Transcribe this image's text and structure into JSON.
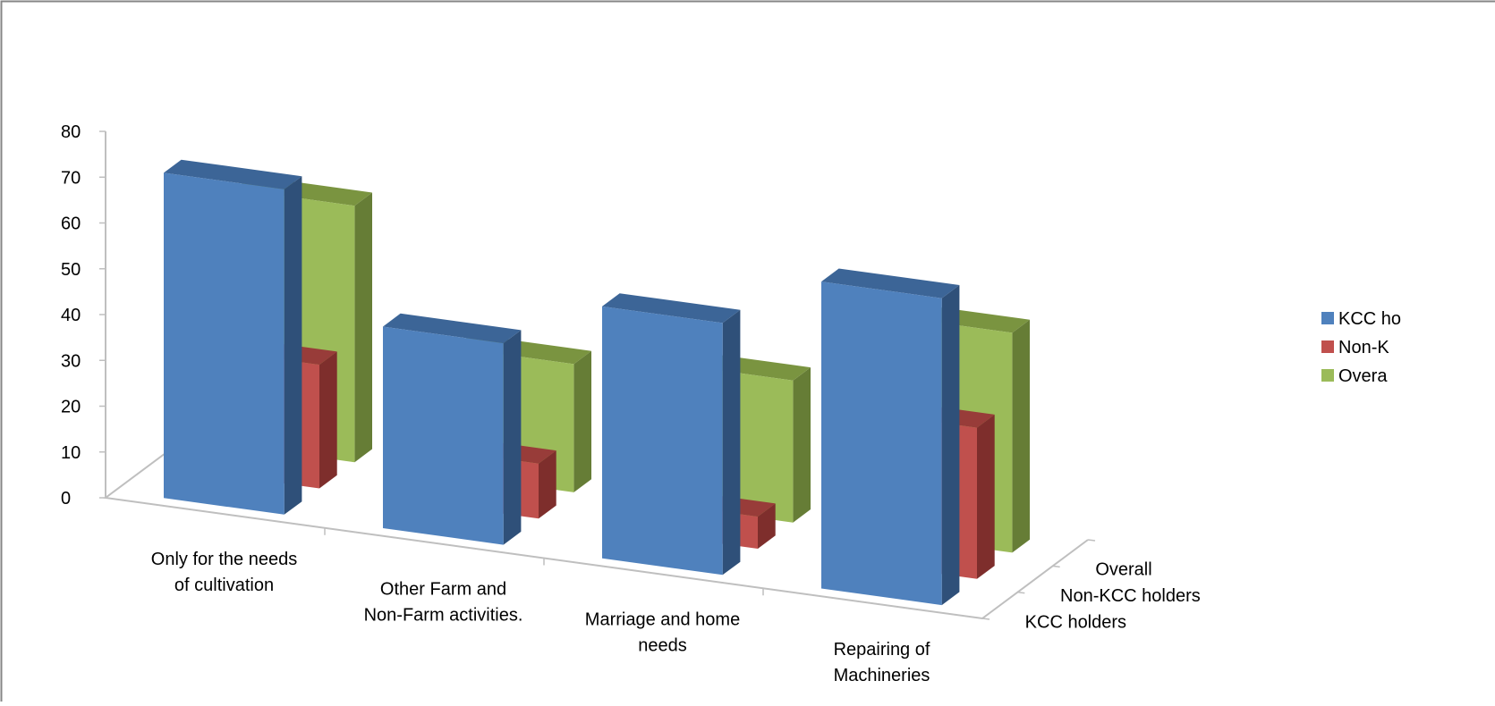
{
  "chart_data": {
    "type": "bar",
    "subtype": "3d-clustered-column",
    "categories": [
      "Only for the needs of cultivation",
      "Other Farm and Non-Farm activities.",
      "Marriage and home needs",
      "Repairing of Machineries"
    ],
    "category_lines": [
      [
        "Only for the needs",
        "of cultivation"
      ],
      [
        "Other Farm and",
        "Non-Farm activities."
      ],
      [
        "Marriage and home",
        "needs"
      ],
      [
        "Repairing of",
        "Machineries"
      ]
    ],
    "series": [
      {
        "name": "KCC holders",
        "values": [
          71,
          44,
          55,
          67
        ]
      },
      {
        "name": "Non-KCC holders",
        "values": [
          27,
          12,
          7,
          33
        ]
      },
      {
        "name": "Overall",
        "values": [
          56,
          28,
          31,
          48
        ]
      }
    ],
    "depth_labels": [
      "KCC holders",
      "Non-KCC holders",
      "Overall"
    ],
    "legend_labels": [
      "KCC ho",
      "Non-K",
      "Overa"
    ],
    "ylim": [
      0,
      80
    ],
    "yticks": [
      0,
      10,
      20,
      30,
      40,
      50,
      60,
      70,
      80
    ],
    "grid": false,
    "legend_position": "right",
    "colors": {
      "KCC holders": {
        "front": "#4F81BD",
        "side": "#2F5079",
        "top": "#3C6597"
      },
      "Non-KCC holders": {
        "front": "#C0504D",
        "side": "#7E2E2C",
        "top": "#983C39"
      },
      "Overall": {
        "front": "#9BBB59",
        "side": "#667D36",
        "top": "#7A9440"
      },
      "axis": "#BFBFBF"
    }
  }
}
